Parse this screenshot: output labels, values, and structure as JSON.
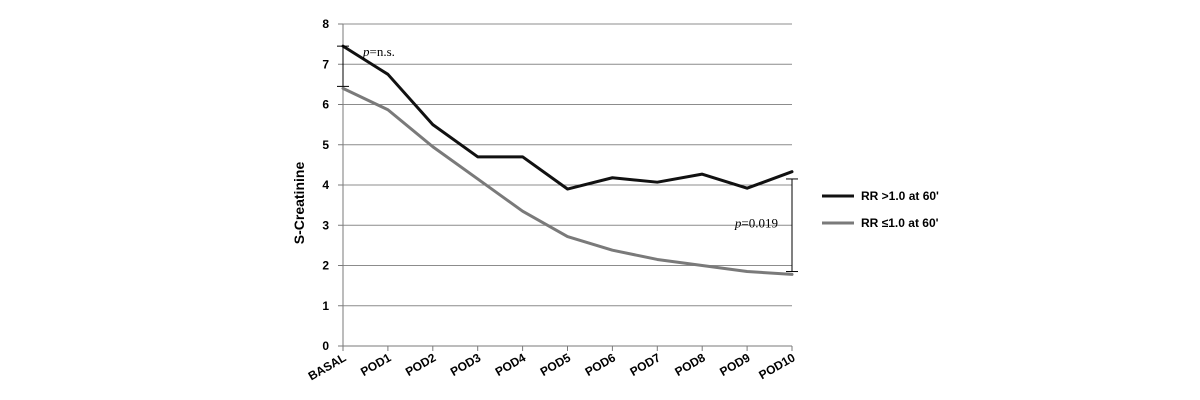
{
  "chart_data": {
    "type": "line",
    "title": "",
    "xlabel": "",
    "ylabel": "S-Creatinine",
    "ylim": [
      0,
      8
    ],
    "yticks": [
      0,
      1,
      2,
      3,
      4,
      5,
      6,
      7,
      8
    ],
    "grid": true,
    "legend_position": "right",
    "categories": [
      "BASAL",
      "POD1",
      "POD2",
      "POD3",
      "POD4",
      "POD5",
      "POD6",
      "POD7",
      "POD8",
      "POD9",
      "POD10"
    ],
    "series": [
      {
        "name": "RR >1.0 at 60'",
        "color": "#111111",
        "values": [
          7.45,
          6.75,
          5.5,
          4.7,
          4.7,
          3.9,
          4.18,
          4.07,
          4.27,
          3.92,
          4.33
        ]
      },
      {
        "name": "RR ≤1.0 at 60'",
        "color": "#7a7a7a",
        "values": [
          6.4,
          5.87,
          4.95,
          4.15,
          3.35,
          2.72,
          2.38,
          2.15,
          2.0,
          1.85,
          1.78
        ]
      }
    ],
    "annotations": [
      {
        "label_prefix": "p",
        "label_suffix": "=n.s.",
        "category": "BASAL",
        "y_from": 6.45,
        "y_to": 7.45
      },
      {
        "label_prefix": "p",
        "label_suffix": "=0.019",
        "category": "POD10",
        "y_from": 1.85,
        "y_to": 4.15
      }
    ]
  }
}
